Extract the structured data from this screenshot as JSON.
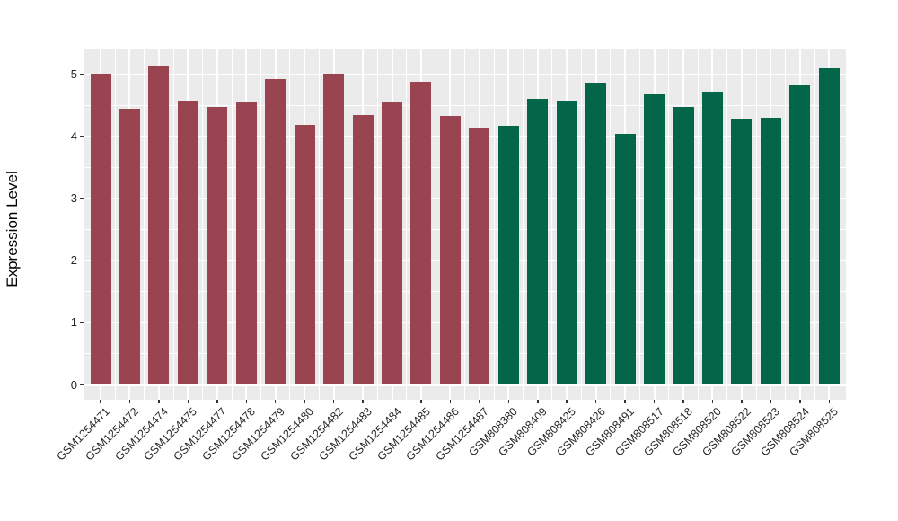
{
  "chart_data": {
    "type": "bar",
    "title": "",
    "ylabel": "Expression Level",
    "xlabel": "",
    "ylim": [
      0,
      5.4
    ],
    "yticks": [
      0,
      1,
      2,
      3,
      4,
      5
    ],
    "grid": true,
    "legend": false,
    "bars": [
      {
        "label": "GSM1254471",
        "value": 5.01,
        "group": "group1"
      },
      {
        "label": "GSM1254472",
        "value": 4.45,
        "group": "group1"
      },
      {
        "label": "GSM1254474",
        "value": 5.13,
        "group": "group1"
      },
      {
        "label": "GSM1254475",
        "value": 4.58,
        "group": "group1"
      },
      {
        "label": "GSM1254477",
        "value": 4.48,
        "group": "group1"
      },
      {
        "label": "GSM1254478",
        "value": 4.57,
        "group": "group1"
      },
      {
        "label": "GSM1254479",
        "value": 4.93,
        "group": "group1"
      },
      {
        "label": "GSM1254480",
        "value": 4.19,
        "group": "group1"
      },
      {
        "label": "GSM1254482",
        "value": 5.01,
        "group": "group1"
      },
      {
        "label": "GSM1254483",
        "value": 4.35,
        "group": "group1"
      },
      {
        "label": "GSM1254484",
        "value": 4.57,
        "group": "group1"
      },
      {
        "label": "GSM1254485",
        "value": 4.88,
        "group": "group1"
      },
      {
        "label": "GSM1254486",
        "value": 4.33,
        "group": "group1"
      },
      {
        "label": "GSM1254487",
        "value": 4.13,
        "group": "group1"
      },
      {
        "label": "GSM808380",
        "value": 4.17,
        "group": "group2"
      },
      {
        "label": "GSM808409",
        "value": 4.61,
        "group": "group2"
      },
      {
        "label": "GSM808425",
        "value": 4.58,
        "group": "group2"
      },
      {
        "label": "GSM808426",
        "value": 4.87,
        "group": "group2"
      },
      {
        "label": "GSM808491",
        "value": 4.05,
        "group": "group2"
      },
      {
        "label": "GSM808517",
        "value": 4.68,
        "group": "group2"
      },
      {
        "label": "GSM808518",
        "value": 4.48,
        "group": "group2"
      },
      {
        "label": "GSM808520",
        "value": 4.72,
        "group": "group2"
      },
      {
        "label": "GSM808522",
        "value": 4.28,
        "group": "group2"
      },
      {
        "label": "GSM808523",
        "value": 4.3,
        "group": "group2"
      },
      {
        "label": "GSM808524",
        "value": 4.83,
        "group": "group2"
      },
      {
        "label": "GSM808525",
        "value": 5.1,
        "group": "group2"
      }
    ],
    "group_colors": {
      "group1": "#9A4452",
      "group2": "#036649"
    },
    "colors": {
      "panel_background": "#EBEBEB",
      "grid": "#FFFFFF",
      "tick": "#333333",
      "axis_text": "#262626",
      "axis_title": "#000000"
    }
  }
}
